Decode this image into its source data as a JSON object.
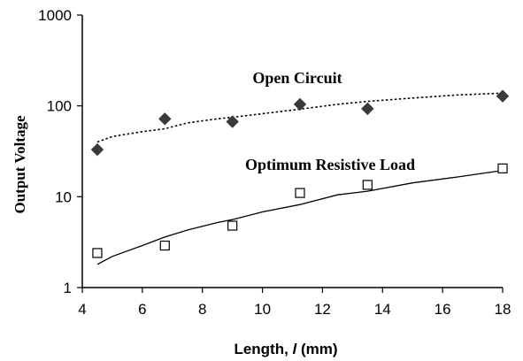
{
  "chart_data": {
    "type": "scatter",
    "xlabel_prefix": "Length, ",
    "xlabel_var": "l",
    "xlabel_suffix": " (mm)",
    "ylabel": "Output Voltage",
    "xlim": [
      4,
      18
    ],
    "ylim": [
      1,
      1000
    ],
    "yscale": "log",
    "grid": false,
    "x_ticks": [
      "4",
      "6",
      "8",
      "10",
      "12",
      "14",
      "16",
      "18"
    ],
    "y_ticks": [
      "1",
      "10",
      "100",
      "1000"
    ],
    "annotations": {
      "open_circuit": "Open Circuit",
      "optimum_load": "Optimum Resistive Load"
    },
    "series": [
      {
        "name": "Open Circuit",
        "marker": "diamond",
        "color": "#3a3a3a",
        "x": [
          4.5,
          6.75,
          9.0,
          11.25,
          13.5,
          18.0
        ],
        "y": [
          33,
          72,
          67,
          104,
          93,
          128
        ]
      },
      {
        "name": "Optimum Resistive Load",
        "marker": "open-square",
        "color": "#000000",
        "x": [
          4.5,
          6.75,
          9.0,
          11.25,
          13.5,
          18.0
        ],
        "y": [
          2.4,
          2.9,
          4.8,
          11,
          13.5,
          20.5
        ]
      }
    ],
    "fits": [
      {
        "name": "Open Circuit fit",
        "style": "dotted",
        "x": [
          4.5,
          5.0,
          6.0,
          6.75,
          7.5,
          8.5,
          9.0,
          10.0,
          11.25,
          12.5,
          13.5,
          15.0,
          16.5,
          18.0
        ],
        "y": [
          40,
          46,
          52,
          56,
          65,
          72,
          75,
          82,
          92,
          104,
          112,
          122,
          132,
          138
        ]
      },
      {
        "name": "Optimum Resistive Load fit",
        "style": "solid",
        "x": [
          4.5,
          5.0,
          6.0,
          6.75,
          7.5,
          8.5,
          9.0,
          10.0,
          11.25,
          12.5,
          13.5,
          15.0,
          16.5,
          18.0
        ],
        "y": [
          1.8,
          2.2,
          2.9,
          3.6,
          4.3,
          5.2,
          5.6,
          6.8,
          8.2,
          10.5,
          11.5,
          14.2,
          16.5,
          19.5
        ]
      }
    ]
  }
}
